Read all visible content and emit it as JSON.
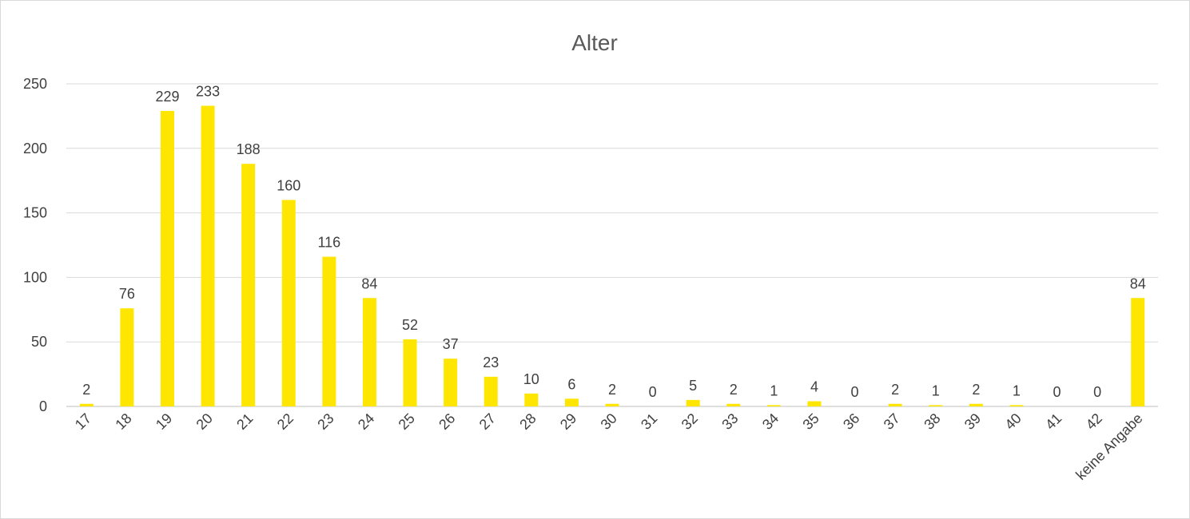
{
  "chart_data": {
    "type": "bar",
    "title": "Alter",
    "xlabel": "",
    "ylabel": "",
    "categories": [
      "17",
      "18",
      "19",
      "20",
      "21",
      "22",
      "23",
      "24",
      "25",
      "26",
      "27",
      "28",
      "29",
      "30",
      "31",
      "32",
      "33",
      "34",
      "35",
      "36",
      "37",
      "38",
      "39",
      "40",
      "41",
      "42",
      "keine Angabe"
    ],
    "values": [
      2,
      76,
      229,
      233,
      188,
      160,
      116,
      84,
      52,
      37,
      23,
      10,
      6,
      2,
      0,
      5,
      2,
      1,
      4,
      0,
      2,
      1,
      2,
      1,
      0,
      0,
      84
    ],
    "ylim": [
      0,
      250
    ],
    "yticks": [
      0,
      50,
      100,
      150,
      200,
      250
    ],
    "grid": true,
    "legend": "none",
    "bar_color": "#FFE600",
    "data_labels": true
  }
}
